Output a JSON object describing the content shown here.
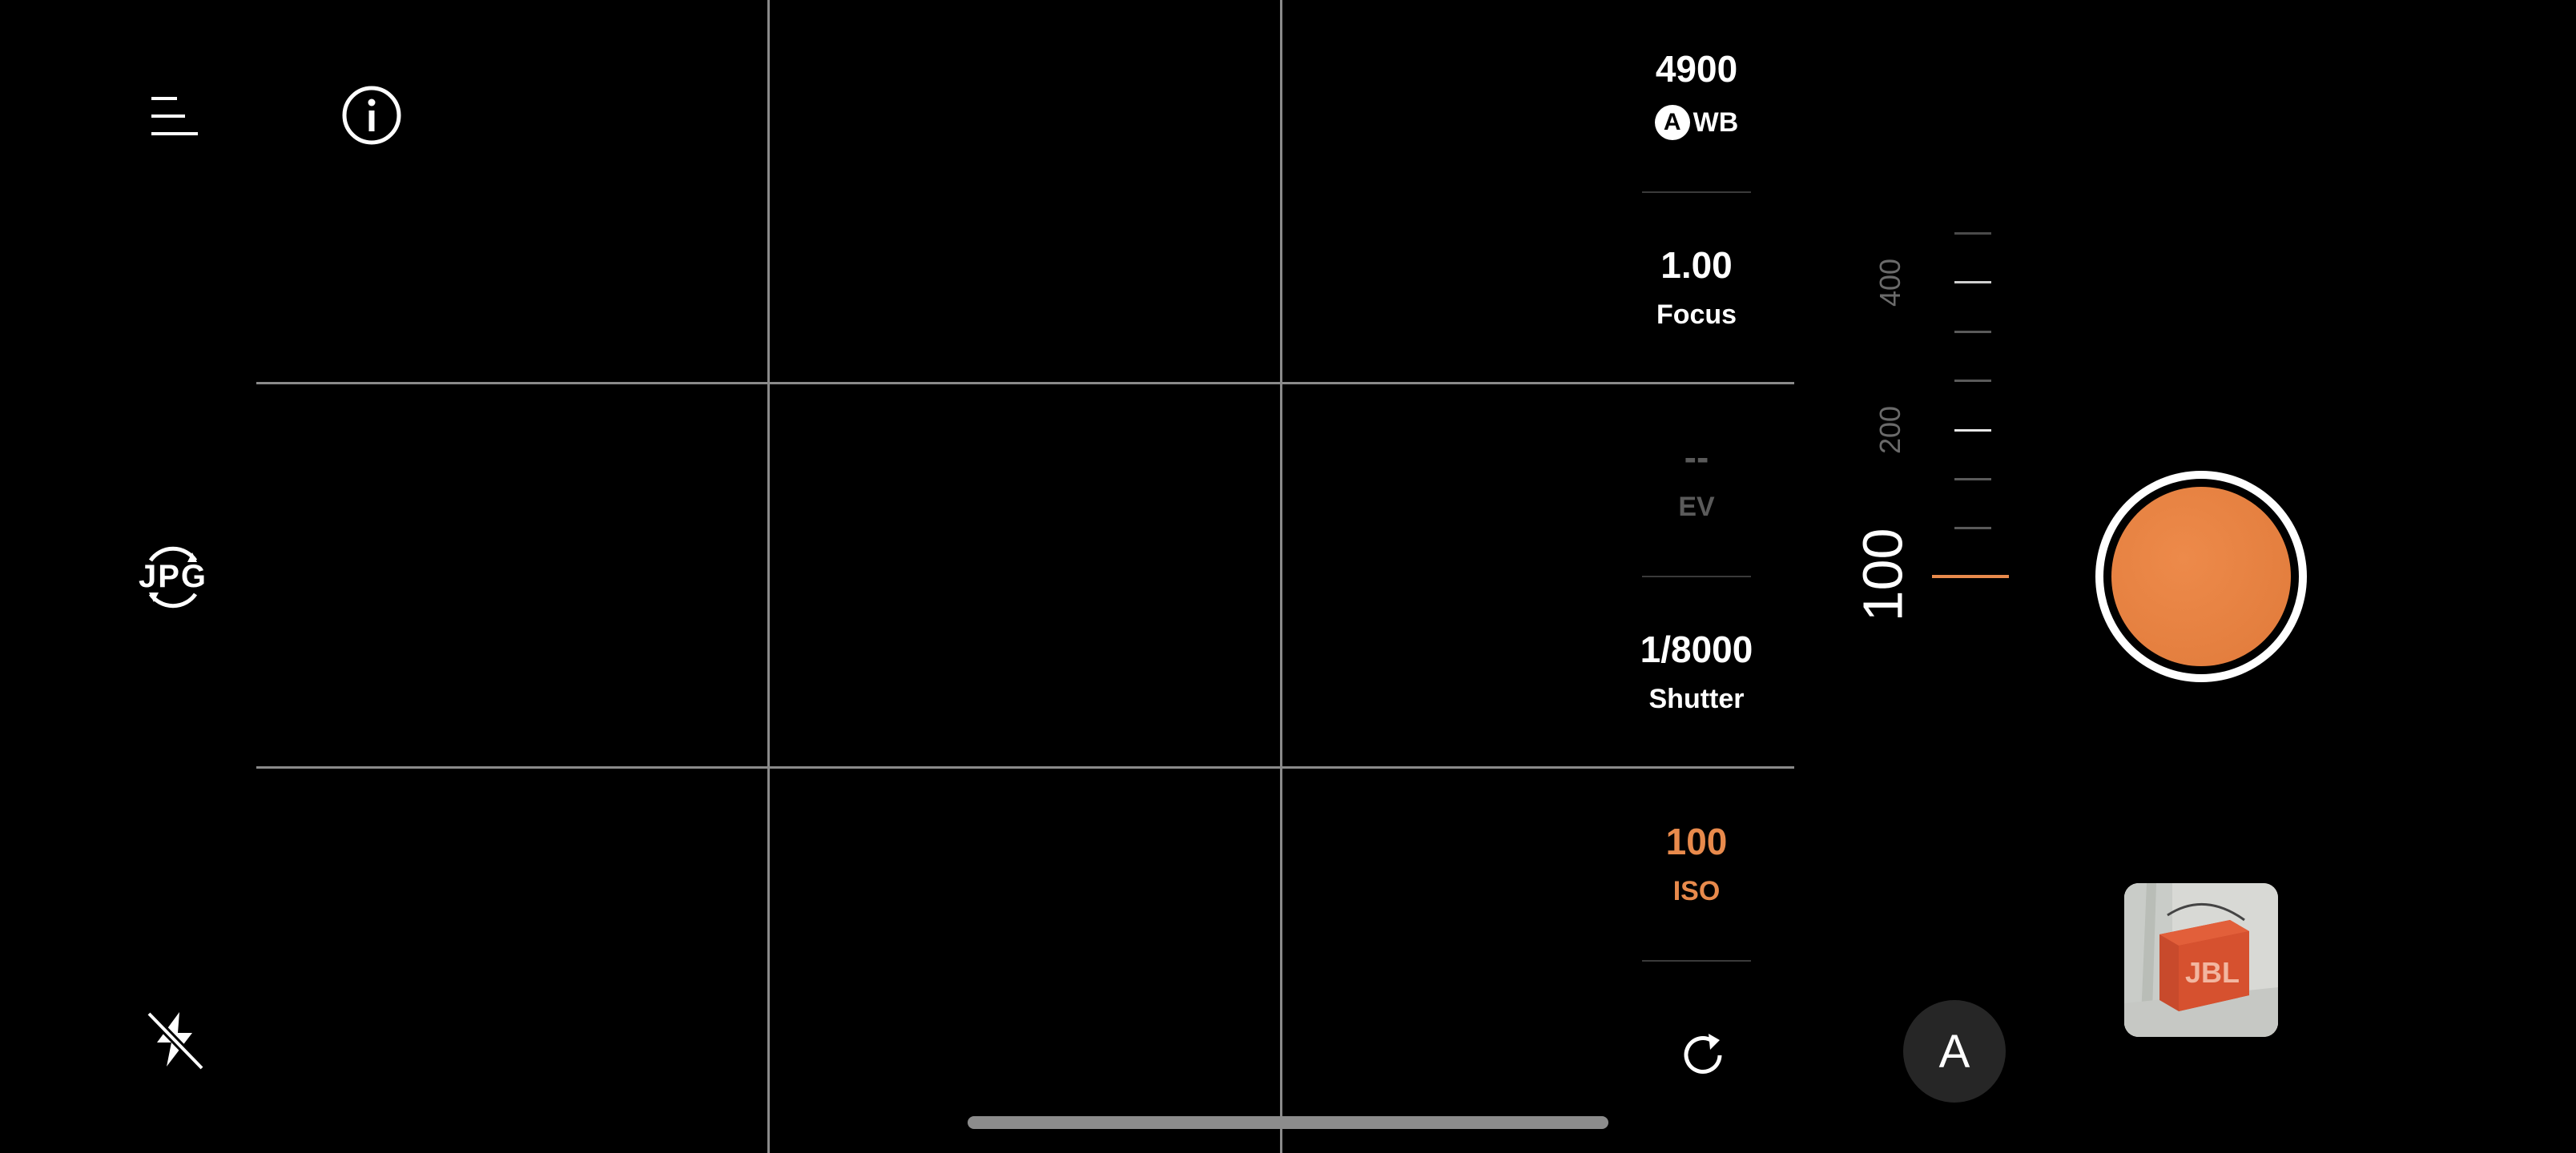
{
  "left_toolbar": {
    "menu_icon": "menu-icon",
    "info_icon": "info-icon",
    "format_label": "JPG",
    "flash_icon": "flash-off-icon"
  },
  "params": {
    "wb": {
      "value": "4900",
      "badge": "A",
      "label": "WB"
    },
    "focus": {
      "value": "1.00",
      "label": "Focus"
    },
    "ev": {
      "value": "--",
      "label": "EV"
    },
    "shutter": {
      "value": "1/8000",
      "label": "Shutter"
    },
    "iso": {
      "value": "100",
      "label": "ISO"
    },
    "reset_icon": "reset-icon"
  },
  "iso_dial": {
    "labels": [
      "400",
      "200"
    ],
    "current": "100"
  },
  "auto_mode": {
    "label": "A"
  },
  "thumbnail": {
    "brand_text": "JBL"
  },
  "colors": {
    "accent": "#e88a4c",
    "grid": "#8a8a8a",
    "dim": "#5a5a5a"
  }
}
